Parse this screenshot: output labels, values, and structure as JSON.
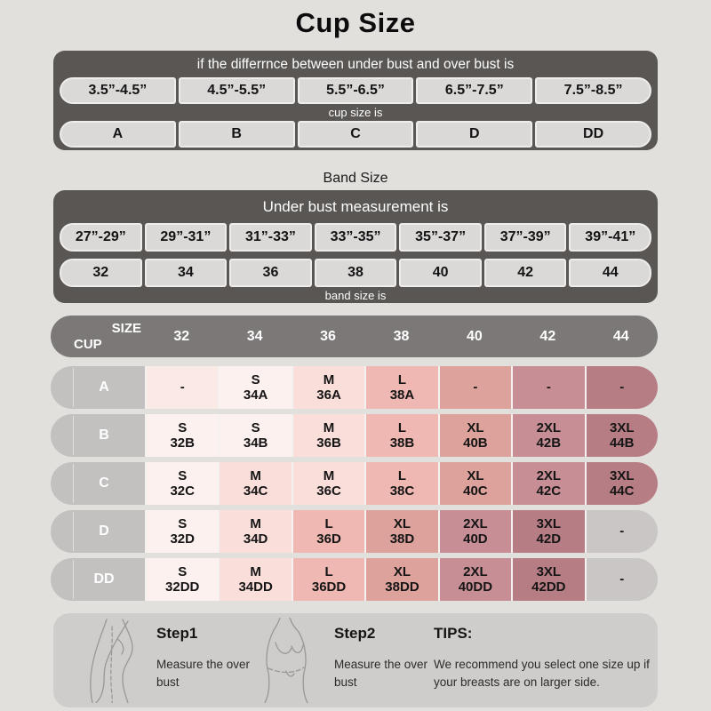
{
  "page": {
    "title": "Cup Size",
    "band_size_label": "Band Size"
  },
  "cup_section": {
    "header": "if the differrnce between under bust and over bust is",
    "ranges": [
      "3.5”-4.5”",
      "4.5”-5.5”",
      "5.5”-6.5”",
      "6.5”-7.5”",
      "7.5”-8.5”"
    ],
    "sub_header": "cup size is",
    "cups": [
      "A",
      "B",
      "C",
      "D",
      "DD"
    ]
  },
  "band_section": {
    "header": "Under bust measurement is",
    "ranges": [
      "27”-29”",
      "29”-31”",
      "31”-33”",
      "33”-35”",
      "35”-37”",
      "37”-39”",
      "39”-41”"
    ],
    "sizes": [
      "32",
      "34",
      "36",
      "38",
      "40",
      "42",
      "44"
    ],
    "footer": "band size is"
  },
  "size_table": {
    "corner_top": "SIZE",
    "corner_bottom": "CUP",
    "columns": [
      "32",
      "34",
      "36",
      "38",
      "40",
      "42",
      "44"
    ],
    "tones": {
      "a0": "#fbe9e6",
      "s": "#fdf1ef",
      "m": "#f9deda",
      "l": "#f0b8b3",
      "xl": "#dda29c",
      "xxl": "#c78f95",
      "xxxl": "#b67d84",
      "gray": "#c9c6c5"
    },
    "rows": [
      {
        "cup": "A",
        "cells": [
          {
            "t1": "-",
            "t2": "",
            "tone": "a0"
          },
          {
            "t1": "S",
            "t2": "34A",
            "tone": "s"
          },
          {
            "t1": "M",
            "t2": "36A",
            "tone": "m"
          },
          {
            "t1": "L",
            "t2": "38A",
            "tone": "l"
          },
          {
            "t1": "-",
            "t2": "",
            "tone": "xl"
          },
          {
            "t1": "-",
            "t2": "",
            "tone": "xxl"
          },
          {
            "t1": "-",
            "t2": "",
            "tone": "xxxl"
          }
        ]
      },
      {
        "cup": "B",
        "cells": [
          {
            "t1": "S",
            "t2": "32B",
            "tone": "s"
          },
          {
            "t1": "S",
            "t2": "34B",
            "tone": "s"
          },
          {
            "t1": "M",
            "t2": "36B",
            "tone": "m"
          },
          {
            "t1": "L",
            "t2": "38B",
            "tone": "l"
          },
          {
            "t1": "XL",
            "t2": "40B",
            "tone": "xl"
          },
          {
            "t1": "2XL",
            "t2": "42B",
            "tone": "xxl"
          },
          {
            "t1": "3XL",
            "t2": "44B",
            "tone": "xxxl"
          }
        ]
      },
      {
        "cup": "C",
        "cells": [
          {
            "t1": "S",
            "t2": "32C",
            "tone": "s"
          },
          {
            "t1": "M",
            "t2": "34C",
            "tone": "m"
          },
          {
            "t1": "M",
            "t2": "36C",
            "tone": "m"
          },
          {
            "t1": "L",
            "t2": "38C",
            "tone": "l"
          },
          {
            "t1": "XL",
            "t2": "40C",
            "tone": "xl"
          },
          {
            "t1": "2XL",
            "t2": "42C",
            "tone": "xxl"
          },
          {
            "t1": "3XL",
            "t2": "44C",
            "tone": "xxxl"
          }
        ]
      },
      {
        "cup": "D",
        "cells": [
          {
            "t1": "S",
            "t2": "32D",
            "tone": "s"
          },
          {
            "t1": "M",
            "t2": "34D",
            "tone": "m"
          },
          {
            "t1": "L",
            "t2": "36D",
            "tone": "l"
          },
          {
            "t1": "XL",
            "t2": "38D",
            "tone": "xl"
          },
          {
            "t1": "2XL",
            "t2": "40D",
            "tone": "xxl"
          },
          {
            "t1": "3XL",
            "t2": "42D",
            "tone": "xxxl"
          },
          {
            "t1": "-",
            "t2": "",
            "tone": "gray"
          }
        ]
      },
      {
        "cup": "DD",
        "cells": [
          {
            "t1": "S",
            "t2": "32DD",
            "tone": "s"
          },
          {
            "t1": "M",
            "t2": "34DD",
            "tone": "m"
          },
          {
            "t1": "L",
            "t2": "36DD",
            "tone": "l"
          },
          {
            "t1": "XL",
            "t2": "38DD",
            "tone": "xl"
          },
          {
            "t1": "2XL",
            "t2": "40DD",
            "tone": "xxl"
          },
          {
            "t1": "3XL",
            "t2": "42DD",
            "tone": "xxxl"
          },
          {
            "t1": "-",
            "t2": "",
            "tone": "gray"
          }
        ]
      }
    ]
  },
  "footer": {
    "step1_title": "Step1",
    "step1_text": "Measure the over bust",
    "step2_title": "Step2",
    "step2_text": "Measure the over bust",
    "tips_title": "TIPS:",
    "tips_text": "We recommend you select one size up if your breasts are on larger side."
  },
  "colors": {
    "background": "#e2e0dd",
    "panel_dark": "#595654",
    "pill_fill": "#dbd9d8",
    "table_header": "#7b7877",
    "row_label": "#c3c0c0",
    "footer_panel": "#cfcdcb"
  }
}
